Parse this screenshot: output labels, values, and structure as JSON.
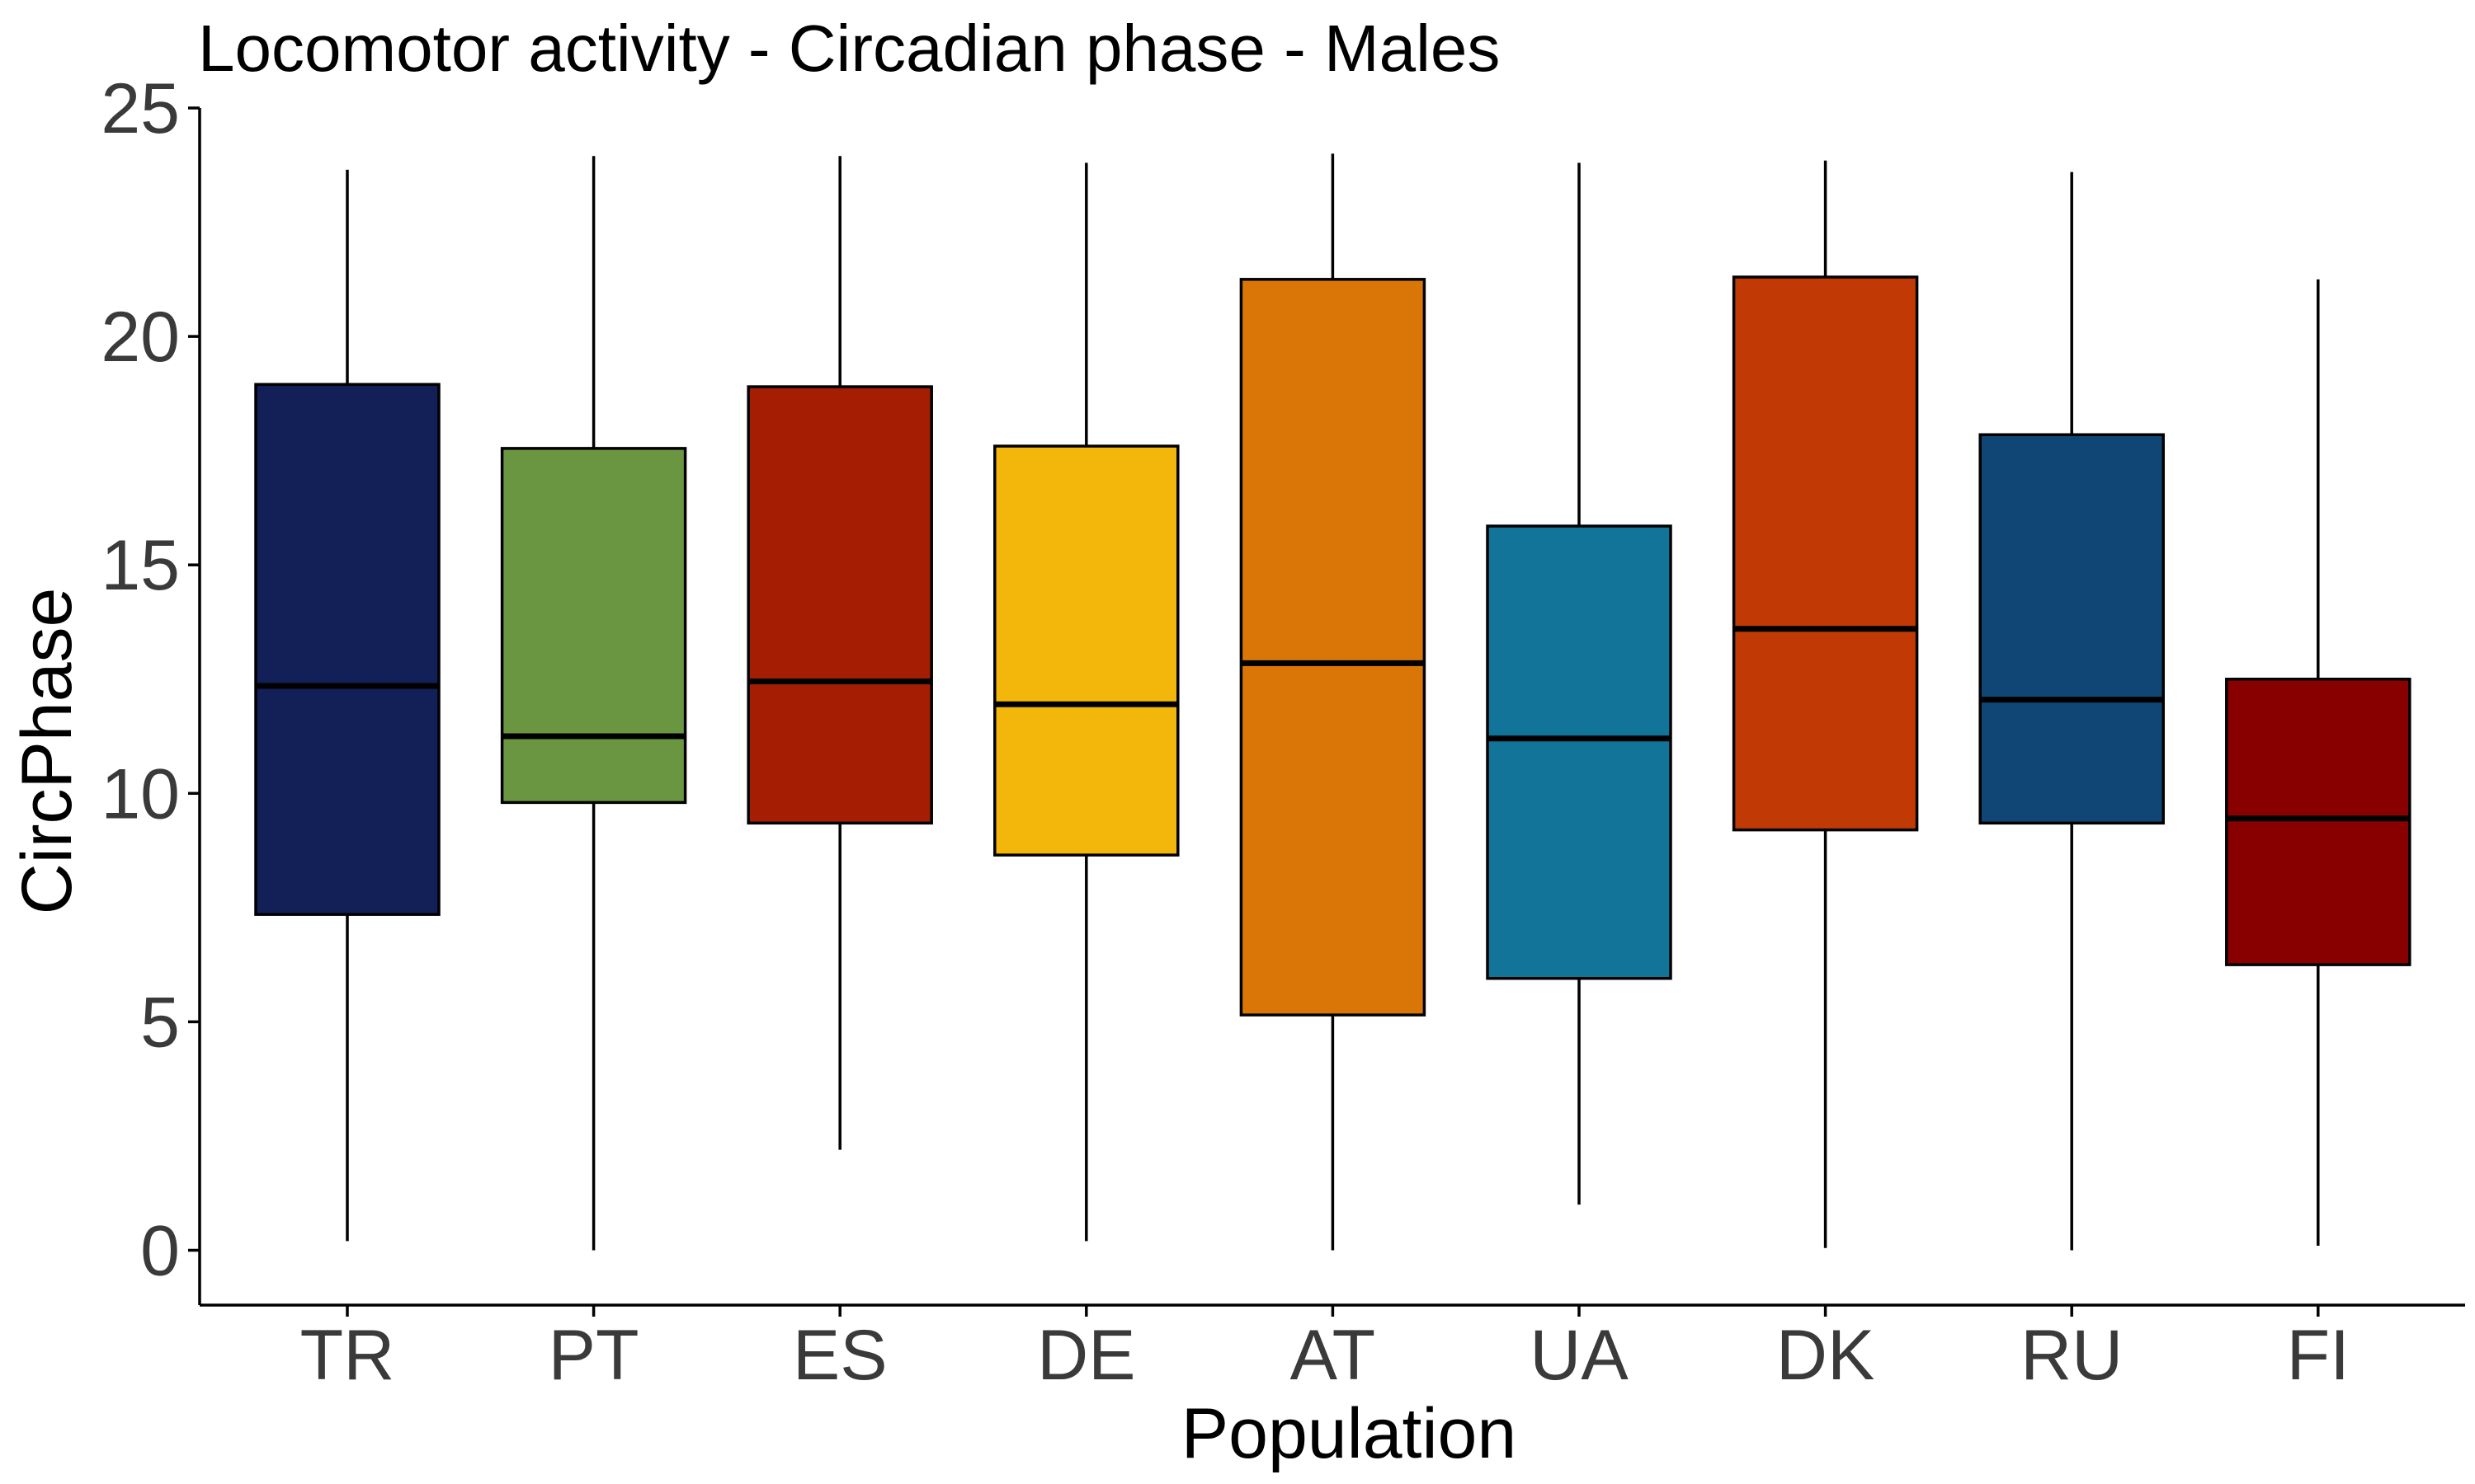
{
  "chart_data": {
    "type": "boxplot",
    "title": "Locomotor activity - Circadian phase - Males",
    "xlabel": "Population",
    "ylabel": "CircPhase",
    "ylim": [
      -1.2,
      25
    ],
    "yticks": [
      0,
      5,
      10,
      15,
      20,
      25
    ],
    "grid": false,
    "legend": "none",
    "categories": [
      "TR",
      "PT",
      "ES",
      "DE",
      "AT",
      "UA",
      "DK",
      "RU",
      "FI"
    ],
    "boxes": [
      {
        "category": "TR",
        "min": 0.2,
        "q1": 7.35,
        "median": 12.35,
        "q3": 18.95,
        "max": 23.65,
        "color": "#131f57"
      },
      {
        "category": "PT",
        "min": 0.0,
        "q1": 9.8,
        "median": 11.25,
        "q3": 17.55,
        "max": 23.95,
        "color": "#6a9641"
      },
      {
        "category": "ES",
        "min": 2.2,
        "q1": 9.35,
        "median": 12.45,
        "q3": 18.9,
        "max": 23.95,
        "color": "#a51d02"
      },
      {
        "category": "DE",
        "min": 0.2,
        "q1": 8.65,
        "median": 11.95,
        "q3": 17.6,
        "max": 23.8,
        "color": "#f3b70b"
      },
      {
        "category": "AT",
        "min": 0.0,
        "q1": 5.15,
        "median": 12.85,
        "q3": 21.25,
        "max": 24.0,
        "color": "#da7607"
      },
      {
        "category": "UA",
        "min": 1.0,
        "q1": 5.95,
        "median": 11.2,
        "q3": 15.85,
        "max": 23.8,
        "color": "#117498"
      },
      {
        "category": "DK",
        "min": 0.05,
        "q1": 9.2,
        "median": 13.6,
        "q3": 21.3,
        "max": 23.85,
        "color": "#c13904"
      },
      {
        "category": "RU",
        "min": 0.0,
        "q1": 9.35,
        "median": 12.05,
        "q3": 17.85,
        "max": 23.6,
        "color": "#0f4675"
      },
      {
        "category": "FI",
        "min": 0.1,
        "q1": 6.25,
        "median": 9.45,
        "q3": 12.5,
        "max": 21.25,
        "color": "#890000"
      }
    ]
  }
}
